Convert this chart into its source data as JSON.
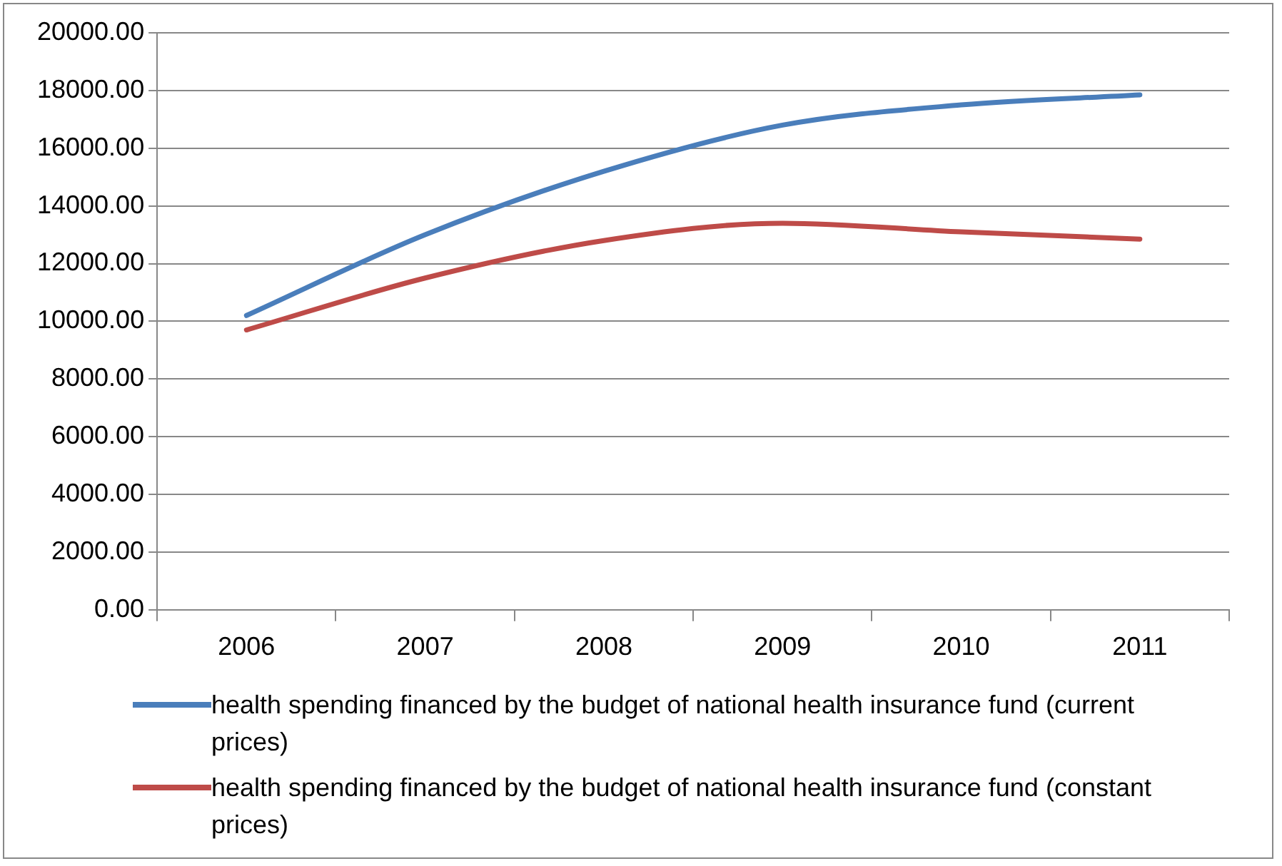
{
  "chart_data": {
    "type": "line",
    "categories": [
      "2006",
      "2007",
      "2008",
      "2009",
      "2010",
      "2011"
    ],
    "series": [
      {
        "name": "health spending financed by the budget of national health insurance fund (current prices)",
        "color": "#4a7ebb",
        "values": [
          10200,
          13000,
          15200,
          16800,
          17500,
          17850
        ]
      },
      {
        "name": "health spending financed by the budget of national health insurance fund (constant prices)",
        "color": "#be4b48",
        "values": [
          9700,
          11500,
          12800,
          13400,
          13100,
          12850
        ]
      }
    ],
    "ylim": [
      0,
      20000
    ],
    "yticks": [
      {
        "value": 0,
        "label": "0.00"
      },
      {
        "value": 2000,
        "label": "2000.00"
      },
      {
        "value": 4000,
        "label": "4000.00"
      },
      {
        "value": 6000,
        "label": "6000.00"
      },
      {
        "value": 8000,
        "label": "8000.00"
      },
      {
        "value": 10000,
        "label": "10000.00"
      },
      {
        "value": 12000,
        "label": "12000.00"
      },
      {
        "value": 14000,
        "label": "14000.00"
      },
      {
        "value": 16000,
        "label": "16000.00"
      },
      {
        "value": 18000,
        "label": "18000.00"
      },
      {
        "value": 20000,
        "label": "20000.00"
      }
    ],
    "grid": "y",
    "legend": "bottom",
    "marker": "none",
    "line_style": "solid"
  }
}
